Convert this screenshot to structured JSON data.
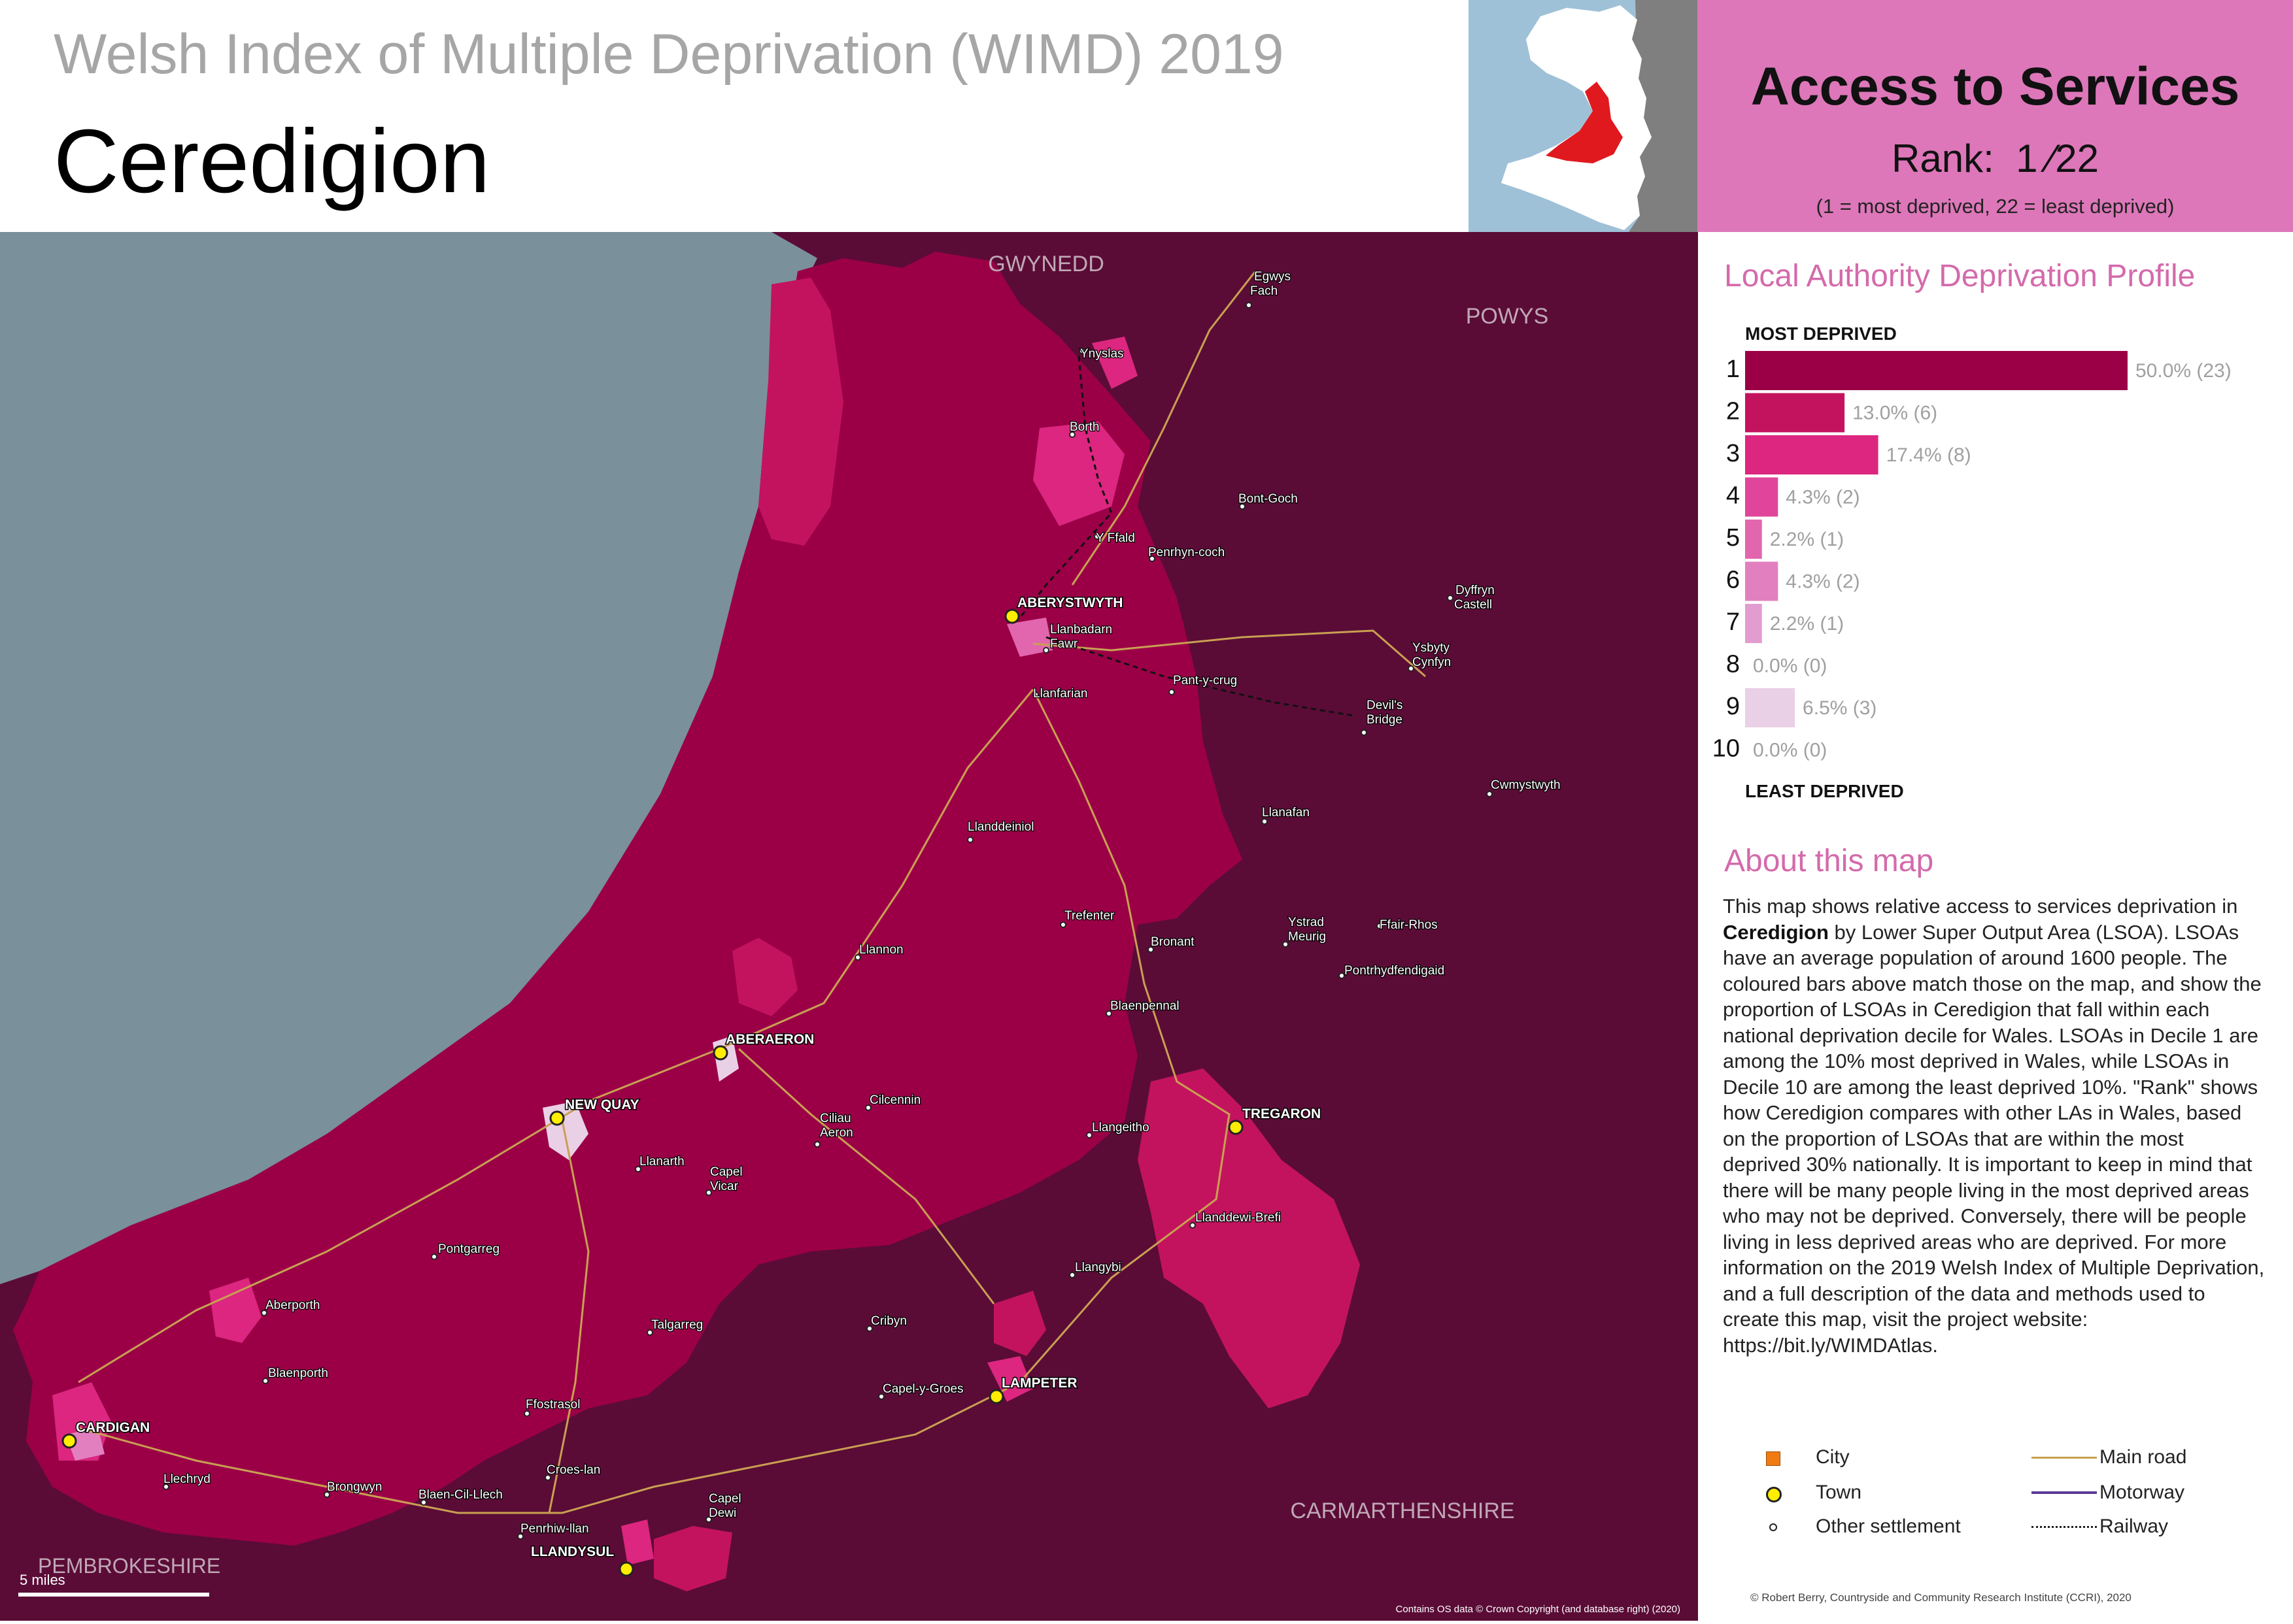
{
  "header": {
    "subtitle": "Welsh Index of Multiple Deprivation (WIMD) 2019",
    "title": "Ceredigion"
  },
  "rank_box": {
    "domain": "Access to Services",
    "rank_label": "Rank:",
    "rank_value": "1 ⁄22",
    "note": "(1 =   most deprived, 22 = least deprived)"
  },
  "profile": {
    "heading": "Local Authority Deprivation Profile",
    "top_label": "MOST DEPRIVED",
    "bottom_label": "LEAST DEPRIVED",
    "rows": [
      {
        "decile": "1",
        "percent": 50.0,
        "label": "50.0% (23)",
        "color": "#9b0047"
      },
      {
        "decile": "2",
        "percent": 13.0,
        "label": "13.0% (6)",
        "color": "#c4135e"
      },
      {
        "decile": "3",
        "percent": 17.4,
        "label": "17.4% (8)",
        "color": "#dc267f"
      },
      {
        "decile": "4",
        "percent": 4.3,
        "label": "4.3% (2)",
        "color": "#e0459b"
      },
      {
        "decile": "5",
        "percent": 2.2,
        "label": "2.2% (1)",
        "color": "#e266ad"
      },
      {
        "decile": "6",
        "percent": 4.3,
        "label": "4.3% (2)",
        "color": "#e280bf"
      },
      {
        "decile": "7",
        "percent": 2.2,
        "label": "2.2% (1)",
        "color": "#e29ccf"
      },
      {
        "decile": "8",
        "percent": 0.0,
        "label": "0.0% (0)",
        "color": "#e5b6d9"
      },
      {
        "decile": "9",
        "percent": 6.5,
        "label": "6.5% (3)",
        "color": "#ead0e6"
      },
      {
        "decile": "10",
        "percent": 0.0,
        "label": "0.0% (0)",
        "color": "#f2e4f0"
      }
    ]
  },
  "about": {
    "heading": "About this map",
    "part1": "This map shows relative access to services deprivation in ",
    "part2": "Ceredigion",
    "part3": " by Lower Super Output Area (LSOA). LSOAs have an average population of around 1600 people. The coloured bars above match those on the map, and show the proportion of LSOAs in Ceredigion that fall within each national deprivation decile for Wales. LSOAs in Decile 1 are among the 10% most deprived in Wales, while LSOAs in Decile 10 are among the least deprived 10%. \"Rank\" shows how Ceredigion compares with other LAs in Wales, based on the proportion of LSOAs that are within the most deprived 30% nationally. It is important to keep in mind that there will be many people living in the most deprived areas who may not be deprived. Conversely, there will be people living in less deprived areas who are deprived. For more information on the 2019 Welsh Index of Multiple Deprivation, and a full description of the data and methods used to create this map, visit the project website: https://bit.ly/WIMDAtlas."
  },
  "legend": {
    "city": "City",
    "town": "Town",
    "other": "Other settlement",
    "main_road": "Main road",
    "motorway": "Motorway",
    "railway": "Railway"
  },
  "map": {
    "neighbours": {
      "gwynedd": "GWYNEDD",
      "powys": "POWYS",
      "carmarthenshire": "CARMARTHENSHIRE",
      "pembrokeshire": "PEMBROKESHIRE"
    },
    "scale": "5 miles",
    "attribution": "Contains OS data © Crown Copyright (and database right) (2020)",
    "towns": {
      "aberystwyth": "ABERYSTWYTH",
      "aberaeron": "ABERAERON",
      "new_quay": "NEW QUAY",
      "tregaron": "TREGARON",
      "lampeter": "LAMPETER",
      "cardigan": "CARDIGAN",
      "llandysul": "LLANDYSUL"
    },
    "places": {
      "egwys_1": "Egwys",
      "egwys_2": "Fach",
      "ynyslas": "Ynyslas",
      "borth": "Borth",
      "bont_goch": "Bont-Goch",
      "y_ffald": "Y Ffald",
      "penrhyn_coch": "Penrhyn-coch",
      "dyffryn_1": "Dyffryn",
      "dyffryn_2": "Castell",
      "llanbadarn_1": "Llanbadarn",
      "llanbadarn_2": "Fawr",
      "ysbyty_1": "Ysbyty",
      "ysbyty_2": "Cynfyn",
      "pant_y_crug": "Pant-y-crug",
      "devils_1": "Devil's",
      "devils_2": "Bridge",
      "llanfarian": "Llanfarian",
      "cwmystwyth": "Cwmystwyth",
      "llanafan": "Llanafan",
      "llanddeiniol": "Llanddeiniol",
      "trefenter": "Trefenter",
      "ystrad_1": "Ystrad",
      "ystrad_2": "Meurig",
      "ffair_rhos": "Ffair-Rhos",
      "bronant": "Bronant",
      "pontrhydfendigaid": "Pontrhydfendigaid",
      "llannon": "Llannon",
      "blaenpennal": "Blaenpennal",
      "cilcennin": "Cilcennin",
      "ciliau_1": "Ciliau",
      "ciliau_2": "Aeron",
      "llangeitho": "Llangeitho",
      "llanarth": "Llanarth",
      "capel_vicar_1": "Capel",
      "capel_vicar_2": "Vicar",
      "llanddewi_brefi": "Llanddewi-Brefi",
      "pontgarreg": "Pontgarreg",
      "llangybi": "Llangybi",
      "aberporth": "Aberporth",
      "talgarreg": "Talgarreg",
      "cribyn": "Cribyn",
      "blaenporth": "Blaenporth",
      "capel_y_groes": "Capel-y-Groes",
      "ffostrasol": "Ffostrasol",
      "llechryd": "Llechryd",
      "brongwyn": "Brongwyn",
      "blaen_cil_llech": "Blaen-Cil-Llech",
      "croes_lan": "Croes-lan",
      "capel_dewi_1": "Capel",
      "capel_dewi_2": "Dewi",
      "penrhiw_llan": "Penrhiw-llan"
    }
  },
  "credit": "© Robert Berry, Countryside and Community Research Institute (CCRI), 2020",
  "colors": {
    "sea": "#7a909b",
    "neighbour_land": "#5a0c36",
    "decile_1": "#9b0047",
    "decile_2": "#c4135e",
    "decile_3": "#dc267f",
    "rank_box": "#dd77b9",
    "heading_pink": "#d46aab",
    "locator_wales": "#ffffff",
    "locator_highlight": "#e0191f",
    "main_road": "#c9a052",
    "motorway": "#5b3a96",
    "town_marker": "#ffee00",
    "city_marker": "#f07b12"
  }
}
